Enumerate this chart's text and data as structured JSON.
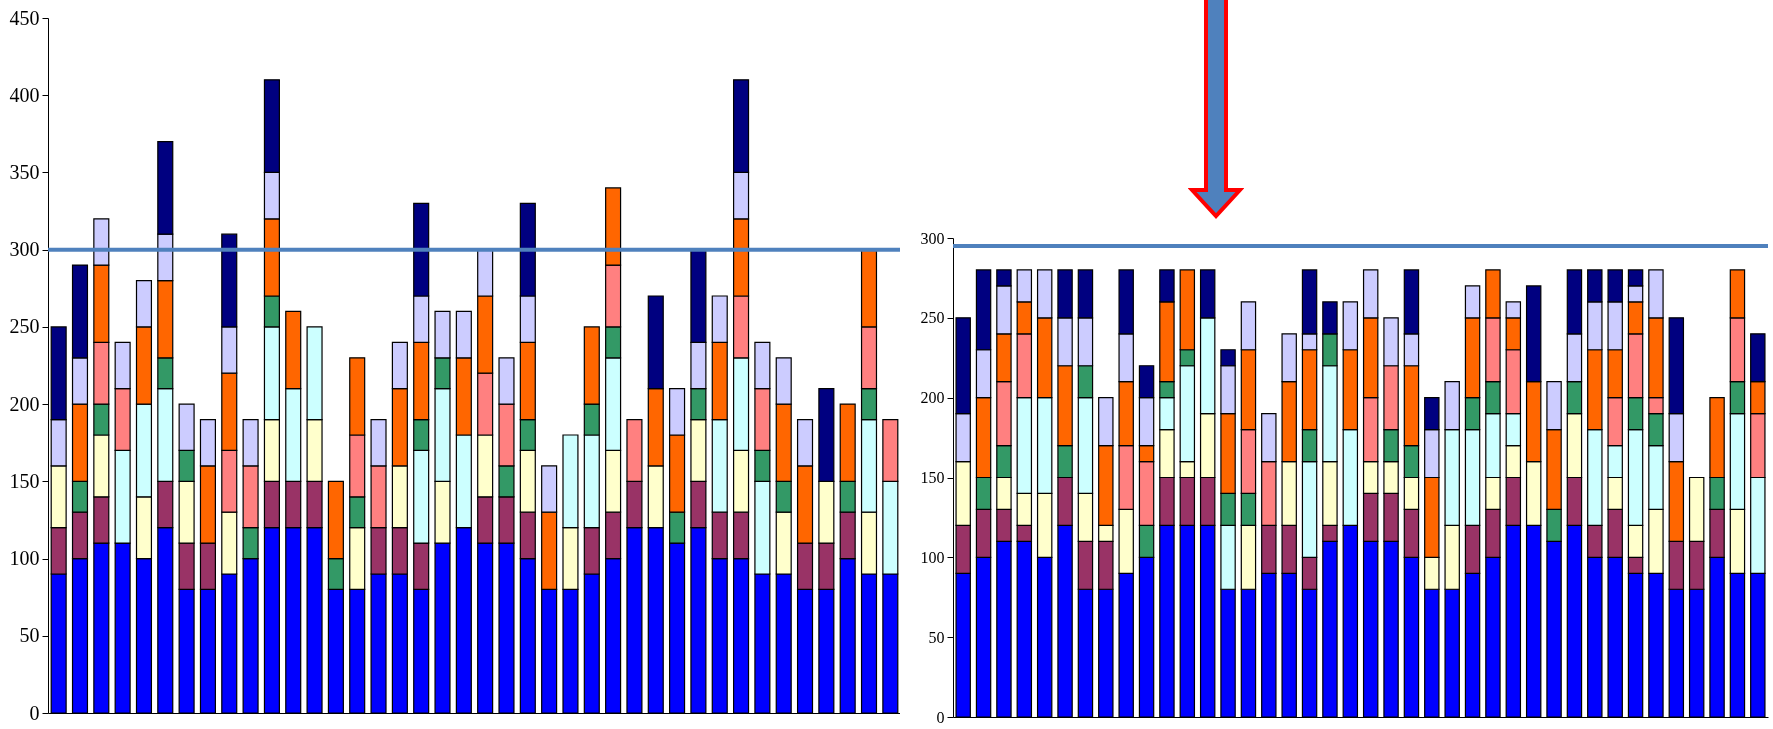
{
  "chart_data": [
    {
      "type": "bar",
      "stacked": true,
      "tick_labels": "y",
      "ylim": [
        0,
        450
      ],
      "yticks": [
        0,
        50,
        100,
        150,
        200,
        250,
        300,
        350,
        400,
        450
      ],
      "categories": [
        null,
        null,
        null,
        null,
        null,
        null,
        null,
        null,
        null,
        null,
        null,
        null,
        null,
        null,
        null,
        null,
        null,
        null,
        null,
        null,
        null,
        null,
        null,
        null,
        null,
        null,
        null,
        null,
        null,
        null,
        null,
        null,
        null,
        null,
        null,
        null,
        null,
        null,
        null,
        null
      ],
      "series": [
        {
          "color": "#0000ff",
          "values": [
            90,
            100,
            110,
            110,
            100,
            120,
            80,
            80,
            90,
            100,
            120,
            120,
            120,
            80,
            80,
            90,
            90,
            80,
            110,
            120,
            110,
            110,
            100,
            80,
            80,
            90,
            100,
            120,
            120,
            110,
            120,
            100,
            100,
            90,
            90,
            80,
            80,
            100,
            90,
            90
          ]
        },
        {
          "color": "#993366",
          "values": [
            30,
            30,
            30,
            null,
            null,
            30,
            30,
            30,
            null,
            null,
            30,
            30,
            30,
            null,
            null,
            30,
            30,
            30,
            null,
            null,
            30,
            30,
            30,
            null,
            null,
            30,
            30,
            30,
            null,
            null,
            30,
            30,
            30,
            null,
            null,
            30,
            30,
            30,
            null,
            null
          ]
        },
        {
          "color": "#ffffcc",
          "values": [
            40,
            null,
            40,
            null,
            40,
            null,
            40,
            null,
            40,
            null,
            40,
            null,
            40,
            null,
            40,
            null,
            40,
            null,
            40,
            null,
            40,
            null,
            40,
            null,
            40,
            null,
            40,
            null,
            40,
            null,
            40,
            null,
            40,
            null,
            40,
            null,
            40,
            null,
            40,
            null
          ]
        },
        {
          "color": "#ccffff",
          "values": [
            null,
            null,
            null,
            60,
            60,
            60,
            null,
            null,
            null,
            null,
            60,
            60,
            60,
            null,
            null,
            null,
            null,
            60,
            60,
            60,
            null,
            null,
            null,
            null,
            60,
            60,
            60,
            null,
            null,
            null,
            null,
            60,
            60,
            60,
            null,
            null,
            null,
            null,
            60,
            60
          ]
        },
        {
          "color": "#339966",
          "values": [
            null,
            20,
            20,
            null,
            null,
            20,
            20,
            null,
            null,
            20,
            20,
            null,
            null,
            20,
            20,
            null,
            null,
            20,
            20,
            null,
            null,
            20,
            20,
            null,
            null,
            20,
            20,
            null,
            null,
            20,
            20,
            null,
            null,
            20,
            20,
            null,
            null,
            20,
            20,
            null
          ]
        },
        {
          "color": "#ff8080",
          "values": [
            null,
            null,
            40,
            40,
            null,
            null,
            null,
            null,
            40,
            40,
            null,
            null,
            null,
            null,
            40,
            40,
            null,
            null,
            null,
            null,
            40,
            40,
            null,
            null,
            null,
            null,
            40,
            40,
            null,
            null,
            null,
            null,
            40,
            40,
            null,
            null,
            null,
            null,
            40,
            40
          ]
        },
        {
          "color": "#ff6600",
          "values": [
            null,
            50,
            50,
            null,
            50,
            50,
            null,
            50,
            50,
            null,
            50,
            50,
            null,
            50,
            50,
            null,
            50,
            50,
            null,
            50,
            50,
            null,
            50,
            50,
            null,
            50,
            50,
            null,
            50,
            50,
            null,
            50,
            50,
            null,
            50,
            50,
            null,
            50,
            50,
            null
          ]
        },
        {
          "color": "#ccccff",
          "values": [
            30,
            30,
            30,
            30,
            30,
            30,
            30,
            30,
            30,
            30,
            30,
            null,
            null,
            null,
            null,
            30,
            30,
            30,
            30,
            30,
            30,
            30,
            30,
            30,
            null,
            null,
            null,
            null,
            null,
            30,
            30,
            30,
            30,
            30,
            30,
            30,
            null,
            null,
            null,
            null
          ]
        },
        {
          "color": "#000080",
          "values": [
            60,
            60,
            null,
            null,
            null,
            60,
            null,
            null,
            60,
            null,
            60,
            null,
            null,
            null,
            null,
            null,
            null,
            60,
            null,
            null,
            null,
            null,
            60,
            null,
            null,
            null,
            null,
            null,
            60,
            null,
            60,
            null,
            60,
            null,
            null,
            null,
            60,
            null,
            null,
            null
          ]
        }
      ],
      "ref_lines": [
        {
          "axis": "y",
          "value": 300,
          "color": "#4f81bd"
        }
      ]
    },
    {
      "type": "bar",
      "stacked": true,
      "tick_labels": "y",
      "ylim": [
        0,
        300
      ],
      "yticks": [
        0,
        50,
        100,
        150,
        200,
        250,
        300
      ],
      "categories": [
        null,
        null,
        null,
        null,
        null,
        null,
        null,
        null,
        null,
        null,
        null,
        null,
        null,
        null,
        null,
        null,
        null,
        null,
        null,
        null,
        null,
        null,
        null,
        null,
        null,
        null,
        null,
        null,
        null,
        null,
        null,
        null,
        null,
        null,
        null,
        null,
        null,
        null,
        null,
        null
      ],
      "series": [
        {
          "color": "#0000ff",
          "values": [
            90,
            100,
            110,
            110,
            100,
            120,
            80,
            80,
            90,
            100,
            120,
            120,
            120,
            80,
            80,
            90,
            90,
            80,
            110,
            120,
            110,
            110,
            100,
            80,
            80,
            90,
            100,
            120,
            120,
            110,
            120,
            100,
            100,
            90,
            90,
            80,
            80,
            100,
            90,
            90
          ]
        },
        {
          "color": "#993366",
          "values": [
            30,
            30,
            20,
            10,
            null,
            30,
            30,
            30,
            null,
            null,
            30,
            30,
            30,
            null,
            null,
            30,
            30,
            20,
            10,
            null,
            30,
            30,
            30,
            null,
            null,
            30,
            30,
            30,
            null,
            null,
            30,
            20,
            30,
            10,
            null,
            30,
            30,
            30,
            null,
            null
          ]
        },
        {
          "color": "#ffffcc",
          "values": [
            40,
            null,
            20,
            20,
            40,
            null,
            30,
            10,
            40,
            null,
            30,
            10,
            40,
            null,
            40,
            null,
            40,
            null,
            40,
            null,
            20,
            20,
            20,
            20,
            40,
            null,
            20,
            20,
            40,
            null,
            40,
            null,
            20,
            20,
            40,
            null,
            40,
            null,
            40,
            null
          ]
        },
        {
          "color": "#ccffff",
          "values": [
            null,
            null,
            null,
            60,
            60,
            null,
            60,
            null,
            null,
            null,
            20,
            60,
            60,
            40,
            null,
            null,
            null,
            60,
            60,
            60,
            null,
            null,
            null,
            null,
            60,
            60,
            40,
            20,
            null,
            null,
            null,
            60,
            20,
            60,
            40,
            null,
            null,
            null,
            60,
            60
          ]
        },
        {
          "color": "#339966",
          "values": [
            null,
            20,
            20,
            null,
            null,
            20,
            20,
            null,
            null,
            20,
            10,
            10,
            null,
            20,
            20,
            null,
            null,
            20,
            20,
            null,
            null,
            20,
            20,
            null,
            null,
            20,
            20,
            null,
            null,
            20,
            20,
            null,
            null,
            20,
            20,
            null,
            null,
            20,
            20,
            null
          ]
        },
        {
          "color": "#ff8080",
          "values": [
            null,
            null,
            40,
            40,
            null,
            null,
            null,
            null,
            40,
            40,
            null,
            null,
            null,
            null,
            40,
            40,
            null,
            null,
            null,
            null,
            40,
            40,
            null,
            null,
            null,
            null,
            40,
            40,
            null,
            null,
            null,
            null,
            30,
            40,
            10,
            null,
            null,
            null,
            40,
            40
          ]
        },
        {
          "color": "#ff6600",
          "values": [
            null,
            50,
            30,
            20,
            50,
            50,
            null,
            50,
            40,
            10,
            50,
            50,
            null,
            50,
            50,
            null,
            50,
            50,
            null,
            50,
            50,
            null,
            50,
            50,
            null,
            50,
            30,
            20,
            50,
            50,
            null,
            50,
            30,
            20,
            50,
            50,
            null,
            50,
            30,
            20
          ]
        },
        {
          "color": "#ccccff",
          "values": [
            30,
            30,
            30,
            20,
            30,
            30,
            30,
            30,
            30,
            30,
            null,
            null,
            null,
            30,
            30,
            30,
            30,
            10,
            null,
            30,
            30,
            30,
            20,
            30,
            30,
            20,
            null,
            10,
            null,
            30,
            30,
            30,
            30,
            10,
            30,
            30,
            null,
            null,
            null,
            null
          ]
        },
        {
          "color": "#000080",
          "values": [
            60,
            50,
            10,
            null,
            null,
            30,
            30,
            null,
            40,
            20,
            20,
            null,
            30,
            10,
            null,
            null,
            null,
            40,
            20,
            null,
            null,
            null,
            40,
            20,
            null,
            null,
            null,
            null,
            60,
            null,
            40,
            20,
            20,
            10,
            null,
            60,
            null,
            null,
            null,
            30
          ]
        }
      ],
      "ref_lines": [
        {
          "axis": "y",
          "value": 295,
          "color": "#4f81bd"
        }
      ]
    }
  ]
}
